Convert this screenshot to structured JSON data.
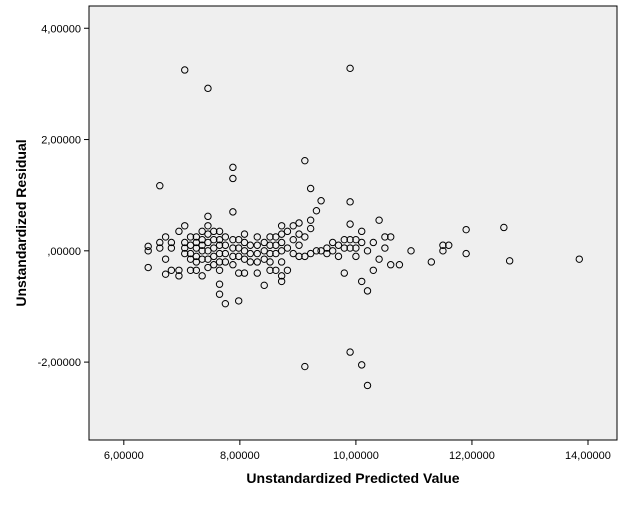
{
  "chart_data": {
    "type": "scatter",
    "title": "",
    "xlabel": "Unstandardized Predicted Value",
    "ylabel": "Unstandardized Residual",
    "xlim": [
      5.4,
      14.5
    ],
    "ylim": [
      -3.4,
      4.4
    ],
    "xticks": [
      6,
      8,
      10,
      12,
      14
    ],
    "xtick_labels": [
      "6,00000",
      "8,00000",
      "10,00000",
      "12,00000",
      "14,00000"
    ],
    "yticks": [
      -2,
      0,
      2,
      4
    ],
    "ytick_labels": [
      "-2,00000",
      ",00000",
      "2,00000",
      "4,00000"
    ],
    "grid": false,
    "legend": "none",
    "colors": {
      "plot_background": "#efefef",
      "marker_stroke": "#000000",
      "frame": "#000000"
    },
    "series": [
      {
        "values": [
          {
            "x": 6.42,
            "y": 0.08
          },
          {
            "x": 6.42,
            "y": -0.3
          },
          {
            "x": 6.42,
            "y": 0.0
          },
          {
            "x": 6.62,
            "y": 1.17
          },
          {
            "x": 6.62,
            "y": 0.15
          },
          {
            "x": 6.62,
            "y": 0.05
          },
          {
            "x": 6.72,
            "y": 0.25
          },
          {
            "x": 6.72,
            "y": -0.15
          },
          {
            "x": 6.72,
            "y": -0.42
          },
          {
            "x": 6.82,
            "y": 0.15
          },
          {
            "x": 6.82,
            "y": 0.05
          },
          {
            "x": 6.82,
            "y": -0.35
          },
          {
            "x": 6.95,
            "y": 0.35
          },
          {
            "x": 6.95,
            "y": -0.35
          },
          {
            "x": 6.95,
            "y": -0.45
          },
          {
            "x": 7.05,
            "y": 3.25
          },
          {
            "x": 7.05,
            "y": 0.45
          },
          {
            "x": 7.05,
            "y": 0.15
          },
          {
            "x": 7.05,
            "y": 0.05
          },
          {
            "x": 7.05,
            "y": -0.05
          },
          {
            "x": 7.15,
            "y": 0.25
          },
          {
            "x": 7.15,
            "y": 0.1
          },
          {
            "x": 7.15,
            "y": -0.05
          },
          {
            "x": 7.15,
            "y": -0.15
          },
          {
            "x": 7.15,
            "y": -0.35
          },
          {
            "x": 7.25,
            "y": 0.25
          },
          {
            "x": 7.25,
            "y": 0.15
          },
          {
            "x": 7.25,
            "y": 0.05
          },
          {
            "x": 7.25,
            "y": -0.1
          },
          {
            "x": 7.25,
            "y": -0.2
          },
          {
            "x": 7.25,
            "y": -0.35
          },
          {
            "x": 7.35,
            "y": 0.35
          },
          {
            "x": 7.35,
            "y": 0.2
          },
          {
            "x": 7.35,
            "y": 0.1
          },
          {
            "x": 7.35,
            "y": 0.0
          },
          {
            "x": 7.35,
            "y": -0.15
          },
          {
            "x": 7.35,
            "y": -0.45
          },
          {
            "x": 7.45,
            "y": 2.92
          },
          {
            "x": 7.45,
            "y": 0.62
          },
          {
            "x": 7.45,
            "y": 0.45
          },
          {
            "x": 7.45,
            "y": 0.3
          },
          {
            "x": 7.45,
            "y": 0.15
          },
          {
            "x": 7.45,
            "y": 0.0
          },
          {
            "x": 7.45,
            "y": -0.15
          },
          {
            "x": 7.45,
            "y": -0.3
          },
          {
            "x": 7.55,
            "y": 0.35
          },
          {
            "x": 7.55,
            "y": 0.2
          },
          {
            "x": 7.55,
            "y": 0.05
          },
          {
            "x": 7.55,
            "y": -0.1
          },
          {
            "x": 7.55,
            "y": -0.25
          },
          {
            "x": 7.65,
            "y": 0.35
          },
          {
            "x": 7.65,
            "y": 0.2
          },
          {
            "x": 7.65,
            "y": 0.1
          },
          {
            "x": 7.65,
            "y": -0.05
          },
          {
            "x": 7.65,
            "y": -0.2
          },
          {
            "x": 7.65,
            "y": -0.35
          },
          {
            "x": 7.65,
            "y": -0.6
          },
          {
            "x": 7.65,
            "y": -0.78
          },
          {
            "x": 7.75,
            "y": 0.25
          },
          {
            "x": 7.75,
            "y": 0.1
          },
          {
            "x": 7.75,
            "y": -0.05
          },
          {
            "x": 7.75,
            "y": -0.2
          },
          {
            "x": 7.75,
            "y": -0.95
          },
          {
            "x": 7.88,
            "y": 1.5
          },
          {
            "x": 7.88,
            "y": 1.3
          },
          {
            "x": 7.88,
            "y": 0.7
          },
          {
            "x": 7.88,
            "y": 0.2
          },
          {
            "x": 7.88,
            "y": 0.05
          },
          {
            "x": 7.88,
            "y": -0.1
          },
          {
            "x": 7.88,
            "y": -0.25
          },
          {
            "x": 7.98,
            "y": 0.2
          },
          {
            "x": 7.98,
            "y": 0.05
          },
          {
            "x": 7.98,
            "y": -0.1
          },
          {
            "x": 7.98,
            "y": -0.4
          },
          {
            "x": 7.98,
            "y": -0.9
          },
          {
            "x": 8.08,
            "y": 0.3
          },
          {
            "x": 8.08,
            "y": 0.15
          },
          {
            "x": 8.08,
            "y": 0.0
          },
          {
            "x": 8.08,
            "y": -0.15
          },
          {
            "x": 8.08,
            "y": -0.4
          },
          {
            "x": 8.18,
            "y": 0.1
          },
          {
            "x": 8.18,
            "y": -0.05
          },
          {
            "x": 8.18,
            "y": -0.2
          },
          {
            "x": 8.3,
            "y": 0.25
          },
          {
            "x": 8.3,
            "y": 0.1
          },
          {
            "x": 8.3,
            "y": -0.05
          },
          {
            "x": 8.3,
            "y": -0.2
          },
          {
            "x": 8.3,
            "y": -0.4
          },
          {
            "x": 8.42,
            "y": 0.15
          },
          {
            "x": 8.42,
            "y": 0.0
          },
          {
            "x": 8.42,
            "y": -0.15
          },
          {
            "x": 8.42,
            "y": -0.62
          },
          {
            "x": 8.52,
            "y": 0.25
          },
          {
            "x": 8.52,
            "y": 0.1
          },
          {
            "x": 8.52,
            "y": -0.05
          },
          {
            "x": 8.52,
            "y": -0.2
          },
          {
            "x": 8.52,
            "y": -0.35
          },
          {
            "x": 8.62,
            "y": 0.25
          },
          {
            "x": 8.62,
            "y": 0.1
          },
          {
            "x": 8.62,
            "y": -0.05
          },
          {
            "x": 8.62,
            "y": -0.35
          },
          {
            "x": 8.72,
            "y": 0.45
          },
          {
            "x": 8.72,
            "y": 0.3
          },
          {
            "x": 8.72,
            "y": 0.15
          },
          {
            "x": 8.72,
            "y": 0.0
          },
          {
            "x": 8.72,
            "y": -0.2
          },
          {
            "x": 8.72,
            "y": -0.45
          },
          {
            "x": 8.72,
            "y": -0.55
          },
          {
            "x": 8.82,
            "y": 0.35
          },
          {
            "x": 8.82,
            "y": 0.05
          },
          {
            "x": 8.82,
            "y": -0.35
          },
          {
            "x": 8.92,
            "y": 0.45
          },
          {
            "x": 8.92,
            "y": 0.2
          },
          {
            "x": 8.92,
            "y": -0.05
          },
          {
            "x": 9.02,
            "y": 0.5
          },
          {
            "x": 9.02,
            "y": 0.3
          },
          {
            "x": 9.02,
            "y": 0.1
          },
          {
            "x": 9.02,
            "y": -0.1
          },
          {
            "x": 9.12,
            "y": 1.62
          },
          {
            "x": 9.12,
            "y": 0.25
          },
          {
            "x": 9.12,
            "y": -0.1
          },
          {
            "x": 9.12,
            "y": -2.08
          },
          {
            "x": 9.22,
            "y": 1.12
          },
          {
            "x": 9.22,
            "y": 0.55
          },
          {
            "x": 9.22,
            "y": 0.4
          },
          {
            "x": 9.22,
            "y": -0.05
          },
          {
            "x": 9.32,
            "y": 0.72
          },
          {
            "x": 9.32,
            "y": 0.0
          },
          {
            "x": 9.4,
            "y": 0.9
          },
          {
            "x": 9.4,
            "y": 0.0
          },
          {
            "x": 9.5,
            "y": 0.05
          },
          {
            "x": 9.5,
            "y": -0.05
          },
          {
            "x": 9.6,
            "y": 0.15
          },
          {
            "x": 9.6,
            "y": 0.0
          },
          {
            "x": 9.7,
            "y": 0.1
          },
          {
            "x": 9.7,
            "y": -0.1
          },
          {
            "x": 9.8,
            "y": 0.2
          },
          {
            "x": 9.8,
            "y": 0.05
          },
          {
            "x": 9.8,
            "y": -0.4
          },
          {
            "x": 9.9,
            "y": 3.28
          },
          {
            "x": 9.9,
            "y": 0.88
          },
          {
            "x": 9.9,
            "y": 0.48
          },
          {
            "x": 9.9,
            "y": 0.2
          },
          {
            "x": 9.9,
            "y": 0.05
          },
          {
            "x": 9.9,
            "y": -1.82
          },
          {
            "x": 10.0,
            "y": 0.2
          },
          {
            "x": 10.0,
            "y": 0.05
          },
          {
            "x": 10.0,
            "y": -0.1
          },
          {
            "x": 10.1,
            "y": 0.35
          },
          {
            "x": 10.1,
            "y": 0.15
          },
          {
            "x": 10.1,
            "y": -0.55
          },
          {
            "x": 10.1,
            "y": -2.05
          },
          {
            "x": 10.2,
            "y": 0.0
          },
          {
            "x": 10.2,
            "y": -0.72
          },
          {
            "x": 10.2,
            "y": -2.42
          },
          {
            "x": 10.3,
            "y": 0.15
          },
          {
            "x": 10.3,
            "y": -0.35
          },
          {
            "x": 10.4,
            "y": 0.55
          },
          {
            "x": 10.4,
            "y": -0.15
          },
          {
            "x": 10.5,
            "y": 0.25
          },
          {
            "x": 10.5,
            "y": 0.05
          },
          {
            "x": 10.6,
            "y": 0.25
          },
          {
            "x": 10.6,
            "y": -0.25
          },
          {
            "x": 10.75,
            "y": -0.25
          },
          {
            "x": 10.95,
            "y": 0.0
          },
          {
            "x": 11.3,
            "y": -0.2
          },
          {
            "x": 11.5,
            "y": 0.1
          },
          {
            "x": 11.5,
            "y": 0.0
          },
          {
            "x": 11.6,
            "y": 0.1
          },
          {
            "x": 11.9,
            "y": 0.38
          },
          {
            "x": 11.9,
            "y": -0.05
          },
          {
            "x": 12.55,
            "y": 0.42
          },
          {
            "x": 12.65,
            "y": -0.18
          },
          {
            "x": 13.85,
            "y": -0.15
          }
        ]
      }
    ]
  }
}
